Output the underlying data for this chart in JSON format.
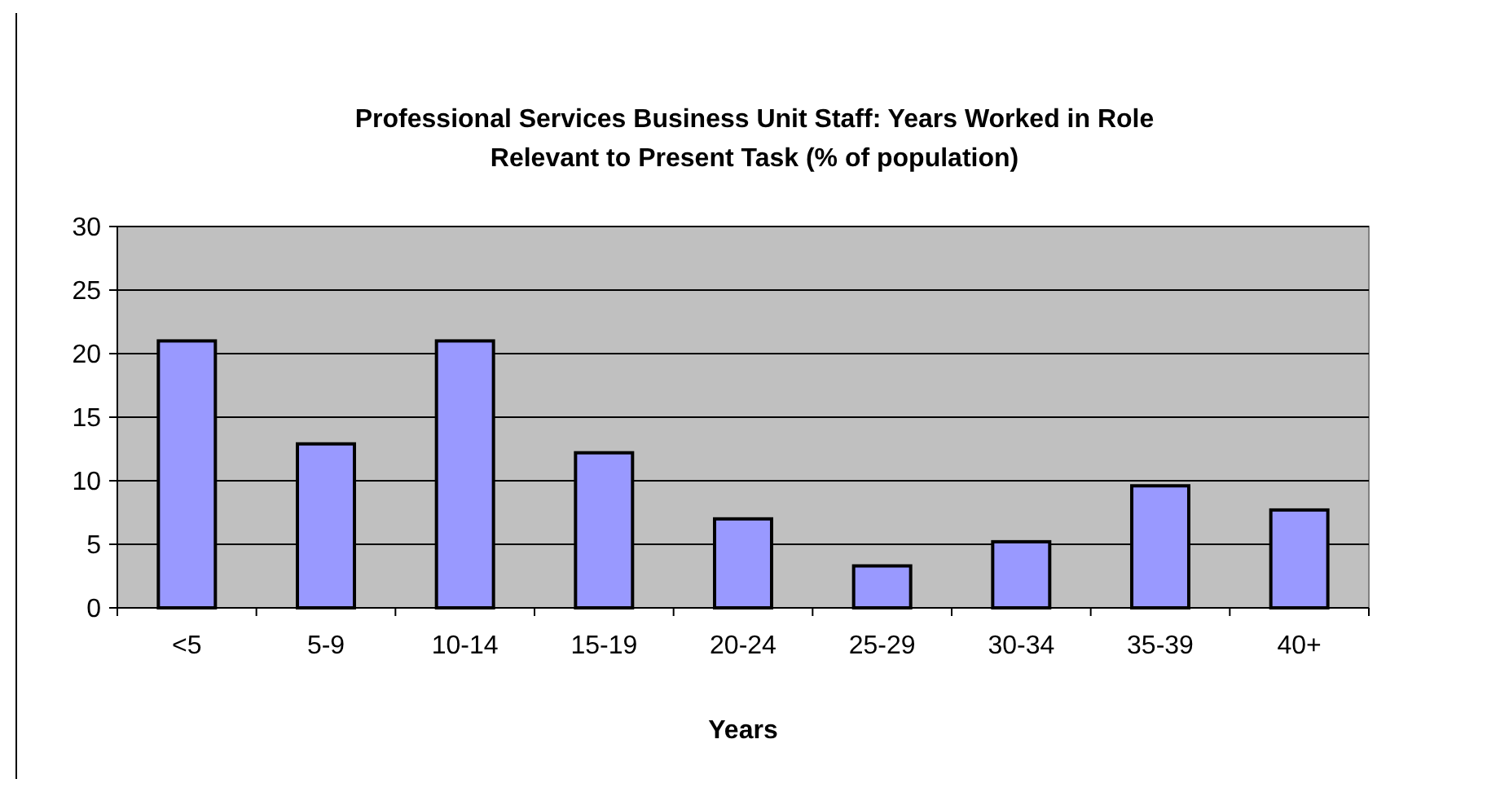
{
  "chart_data": {
    "type": "bar",
    "title": "Professional Services Business Unit Staff: Years Worked in Role\nRelevant to Present Task (% of population)",
    "xlabel": "Years",
    "categories": [
      "<5",
      "5-9",
      "10-14",
      "15-19",
      "20-24",
      "25-29",
      "30-34",
      "35-39",
      "40+"
    ],
    "values": [
      21.0,
      12.9,
      21.0,
      12.2,
      7.0,
      3.3,
      5.2,
      9.6,
      7.7
    ],
    "color": "#9999ff",
    "ylim": [
      0,
      30
    ],
    "yticks": [
      0,
      5,
      10,
      15,
      20,
      25,
      30
    ],
    "grid": "y"
  }
}
